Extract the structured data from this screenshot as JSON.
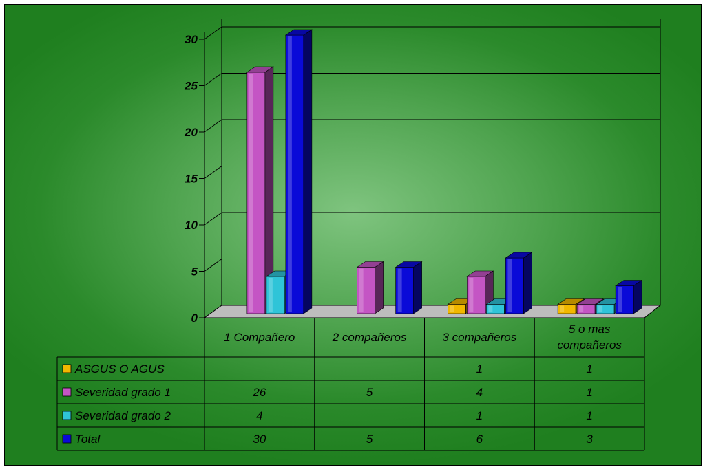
{
  "chart_data": {
    "type": "bar",
    "categories": [
      "1 Compañero",
      "2 compañeros",
      "3 compañeros",
      "5 o mas compañeros"
    ],
    "series": [
      {
        "name": "ASGUS O AGUS",
        "color": "#f2b800",
        "values": [
          null,
          null,
          1,
          1
        ]
      },
      {
        "name": "Severidad grado 1",
        "color": "#c455c4",
        "values": [
          26,
          5,
          4,
          1
        ]
      },
      {
        "name": "Severidad grado 2",
        "color": "#2fc4d8",
        "values": [
          4,
          null,
          1,
          1
        ]
      },
      {
        "name": "Total",
        "color": "#0a0ad8",
        "values": [
          30,
          5,
          6,
          3
        ]
      }
    ],
    "yticks": [
      0,
      5,
      10,
      15,
      20,
      25,
      30
    ],
    "ylim": [
      0,
      30
    ],
    "grid": true,
    "legend": "data-table"
  }
}
